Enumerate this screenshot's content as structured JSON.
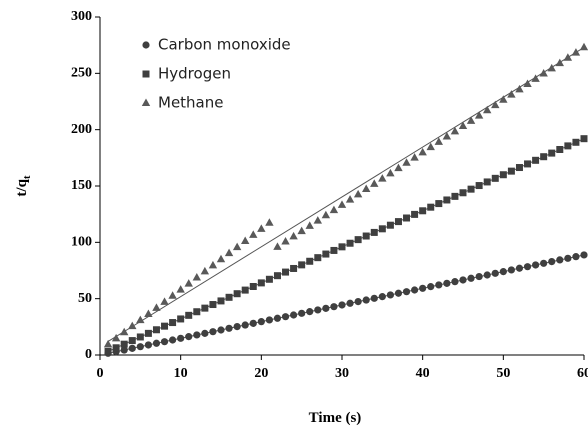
{
  "chart_data": {
    "type": "scatter",
    "xlabel": "Time (s)",
    "ylabel": {
      "main": "t/q",
      "sub": "t"
    },
    "x": [
      1,
      2,
      3,
      4,
      5,
      6,
      7,
      8,
      9,
      10,
      11,
      12,
      13,
      14,
      15,
      16,
      17,
      18,
      19,
      20,
      21,
      22,
      23,
      24,
      25,
      26,
      27,
      28,
      29,
      30,
      31,
      32,
      33,
      34,
      35,
      36,
      37,
      38,
      39,
      40,
      41,
      42,
      43,
      44,
      45,
      46,
      47,
      48,
      49,
      50,
      51,
      52,
      53,
      54,
      55,
      56,
      57,
      58,
      59,
      60
    ],
    "series": [
      {
        "name": "Carbon monoxide",
        "marker": "circle",
        "color": "#3f3f3f",
        "values": [
          1.5,
          3.0,
          4.4,
          5.9,
          7.4,
          8.9,
          10.4,
          11.8,
          13.3,
          14.8,
          16.3,
          17.8,
          19.2,
          20.7,
          22.2,
          23.7,
          25.2,
          26.6,
          28.1,
          29.6,
          31.1,
          32.6,
          34.0,
          35.5,
          37.0,
          38.5,
          40.0,
          41.4,
          42.9,
          44.4,
          45.9,
          47.4,
          48.8,
          50.3,
          51.8,
          53.3,
          54.8,
          56.2,
          57.7,
          59.2,
          60.7,
          62.2,
          63.6,
          65.1,
          66.6,
          68.1,
          69.6,
          71.0,
          72.5,
          74.0,
          75.5,
          77.0,
          78.4,
          79.9,
          81.4,
          82.9,
          84.4,
          85.8,
          87.3,
          88.8
        ],
        "fit": {
          "x": [
            1,
            60
          ],
          "values": [
            1.5,
            88.8
          ]
        }
      },
      {
        "name": "Hydrogen",
        "marker": "square",
        "color": "#3f3f3f",
        "values": [
          3.2,
          6.4,
          9.6,
          12.8,
          16,
          19.2,
          22.4,
          25.6,
          28.8,
          32,
          35.2,
          38.4,
          41.6,
          44.8,
          48,
          51.2,
          54.4,
          57.6,
          60.8,
          64,
          67.2,
          70.4,
          73.6,
          76.8,
          80,
          83.2,
          86.4,
          89.6,
          92.8,
          96,
          99.2,
          102.4,
          105.6,
          108.8,
          112,
          115.2,
          118.4,
          121.6,
          124.8,
          128,
          131.2,
          134.4,
          137.6,
          140.8,
          144,
          147.2,
          150.4,
          153.6,
          156.8,
          160,
          163.2,
          166.4,
          169.6,
          172.8,
          176,
          179.2,
          182.4,
          185.6,
          188.8,
          192
        ],
        "fit": {
          "x": [
            1,
            60
          ],
          "values": [
            3.2,
            192
          ]
        }
      },
      {
        "name": "Methane",
        "marker": "triangle",
        "color": "#595959",
        "values": [
          9.4,
          14.8,
          20.2,
          25.6,
          31,
          36.4,
          41.8,
          47.2,
          52.6,
          58,
          63.4,
          68.8,
          74.2,
          79.6,
          85,
          90.4,
          95.8,
          101.2,
          106.6,
          112,
          117.4,
          96,
          100.7,
          105.3,
          110,
          114.6,
          119.3,
          124,
          128.6,
          133.3,
          137.9,
          142.6,
          147.3,
          151.9,
          156.6,
          161.2,
          165.9,
          170.6,
          175.2,
          179.9,
          184.5,
          189.2,
          193.9,
          198.5,
          203.2,
          207.8,
          212.5,
          217.2,
          221.8,
          226.5,
          231.1,
          235.8,
          240.5,
          245.1,
          249.8,
          254.4,
          259.1,
          263.8,
          268.4,
          273.1
        ],
        "fit": {
          "x": [
            1,
            60
          ],
          "values": [
            12,
            273
          ]
        }
      }
    ],
    "xlim": [
      0,
      60
    ],
    "xticks": [
      0,
      10,
      20,
      30,
      40,
      50,
      60
    ],
    "ylim": [
      0,
      300
    ],
    "yticks": [
      0,
      50,
      100,
      150,
      200,
      250,
      300
    ],
    "grid": false,
    "legend": "upper-left"
  }
}
